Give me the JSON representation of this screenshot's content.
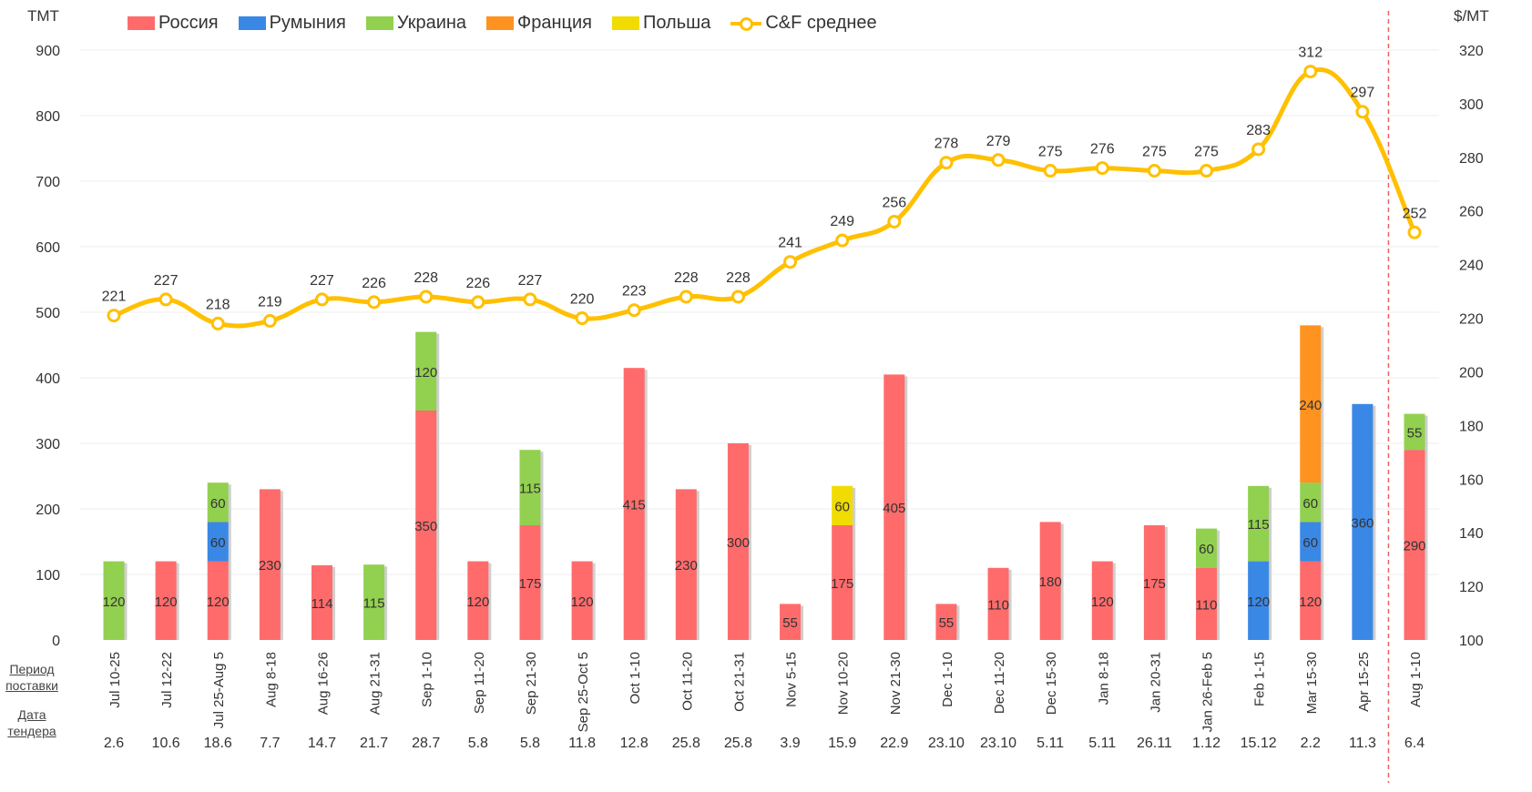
{
  "chart_data": {
    "type": "bar",
    "stacked": true,
    "left_axis": {
      "label": "ТМТ",
      "range": [
        0,
        900
      ],
      "ticks": [
        0,
        100,
        200,
        300,
        400,
        500,
        600,
        700,
        800,
        900
      ]
    },
    "right_axis": {
      "label": "$/MT",
      "range": [
        100,
        320
      ],
      "ticks": [
        100,
        120,
        140,
        160,
        180,
        200,
        220,
        240,
        260,
        280,
        300,
        320
      ]
    },
    "row_labels": {
      "period": "Период поставки",
      "tender": "Дата тендера"
    },
    "legend_position": "top",
    "grid": true,
    "categories": [
      "Jul 10-25",
      "Jul 12-22",
      "Jul 25-Aug 5",
      "Aug 8-18",
      "Aug 16-26",
      "Aug 21-31",
      "Sep 1-10",
      "Sep 11-20",
      "Sep 21-30",
      "Sep 25-Oct 5",
      "Oct 1-10",
      "Oct 11-20",
      "Oct 21-31",
      "Nov 5-15",
      "Nov 10-20",
      "Nov 21-30",
      "Dec 1-10",
      "Dec 11-20",
      "Dec 15-30",
      "Jan 8-18",
      "Jan 20-31",
      "Jan 26-Feb 5",
      "Feb 1-15",
      "Mar 15-30",
      "Apr 15-25",
      "Aug 1-10"
    ],
    "tender_dates": [
      "2.6",
      "10.6",
      "18.6",
      "7.7",
      "14.7",
      "21.7",
      "28.7",
      "5.8",
      "5.8",
      "11.8",
      "12.8",
      "25.8",
      "25.8",
      "3.9",
      "15.9",
      "22.9",
      "23.10",
      "23.10",
      "5.11",
      "5.11",
      "26.11",
      "1.12",
      "15.12",
      "2.2",
      "11.3",
      "6.4"
    ],
    "series": [
      {
        "name": "Россия",
        "color": "#FF6B6B",
        "values": [
          0,
          120,
          120,
          230,
          114,
          0,
          350,
          120,
          175,
          120,
          415,
          230,
          300,
          55,
          175,
          405,
          55,
          110,
          180,
          120,
          175,
          110,
          0,
          120,
          0,
          290
        ]
      },
      {
        "name": "Румыния",
        "color": "#3A88E6",
        "values": [
          0,
          0,
          60,
          0,
          0,
          0,
          0,
          0,
          0,
          0,
          0,
          0,
          0,
          0,
          0,
          0,
          0,
          0,
          0,
          0,
          0,
          0,
          120,
          60,
          360,
          0
        ]
      },
      {
        "name": "Украина",
        "color": "#92D050",
        "values": [
          120,
          0,
          60,
          0,
          0,
          115,
          120,
          0,
          115,
          0,
          0,
          0,
          0,
          0,
          0,
          0,
          0,
          0,
          0,
          0,
          0,
          60,
          115,
          60,
          0,
          55
        ]
      },
      {
        "name": "Франция",
        "color": "#FF9320",
        "values": [
          0,
          0,
          0,
          0,
          0,
          0,
          0,
          0,
          0,
          0,
          0,
          0,
          0,
          0,
          0,
          0,
          0,
          0,
          0,
          0,
          0,
          0,
          0,
          240,
          0,
          0
        ]
      },
      {
        "name": "Польша",
        "color": "#F0DC00",
        "values": [
          0,
          0,
          0,
          0,
          0,
          0,
          0,
          0,
          0,
          0,
          0,
          0,
          0,
          0,
          60,
          0,
          0,
          0,
          0,
          0,
          0,
          0,
          0,
          0,
          0,
          0
        ]
      }
    ],
    "line": {
      "name": "C&F среднее",
      "color": "#FFC000",
      "axis": "right",
      "values": [
        221,
        227,
        218,
        219,
        227,
        226,
        228,
        226,
        227,
        220,
        223,
        228,
        228,
        241,
        249,
        256,
        278,
        279,
        275,
        276,
        275,
        275,
        283,
        312,
        297,
        252
      ]
    },
    "divider_after_category": "Apr 15-25"
  }
}
